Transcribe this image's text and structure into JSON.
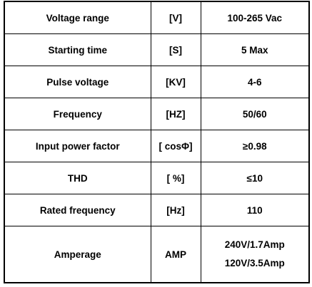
{
  "table": {
    "rows": [
      [
        "Voltage range",
        "[V]",
        "100-265 Vac"
      ],
      [
        "Starting time",
        "[S]",
        "5 Max"
      ],
      [
        "Pulse voltage",
        "[KV]",
        "4-6"
      ],
      [
        "Frequency",
        "[HZ]",
        "50/60"
      ],
      [
        "Input power factor",
        "[ cosΦ]",
        "≥0.98"
      ],
      [
        "THD",
        "[ %]",
        "≤10"
      ],
      [
        "Rated frequency",
        "[Hz]",
        "110"
      ],
      [
        "Amperage",
        "AMP",
        [
          "240V/1.7Amp",
          "120V/3.5Amp"
        ]
      ]
    ]
  }
}
